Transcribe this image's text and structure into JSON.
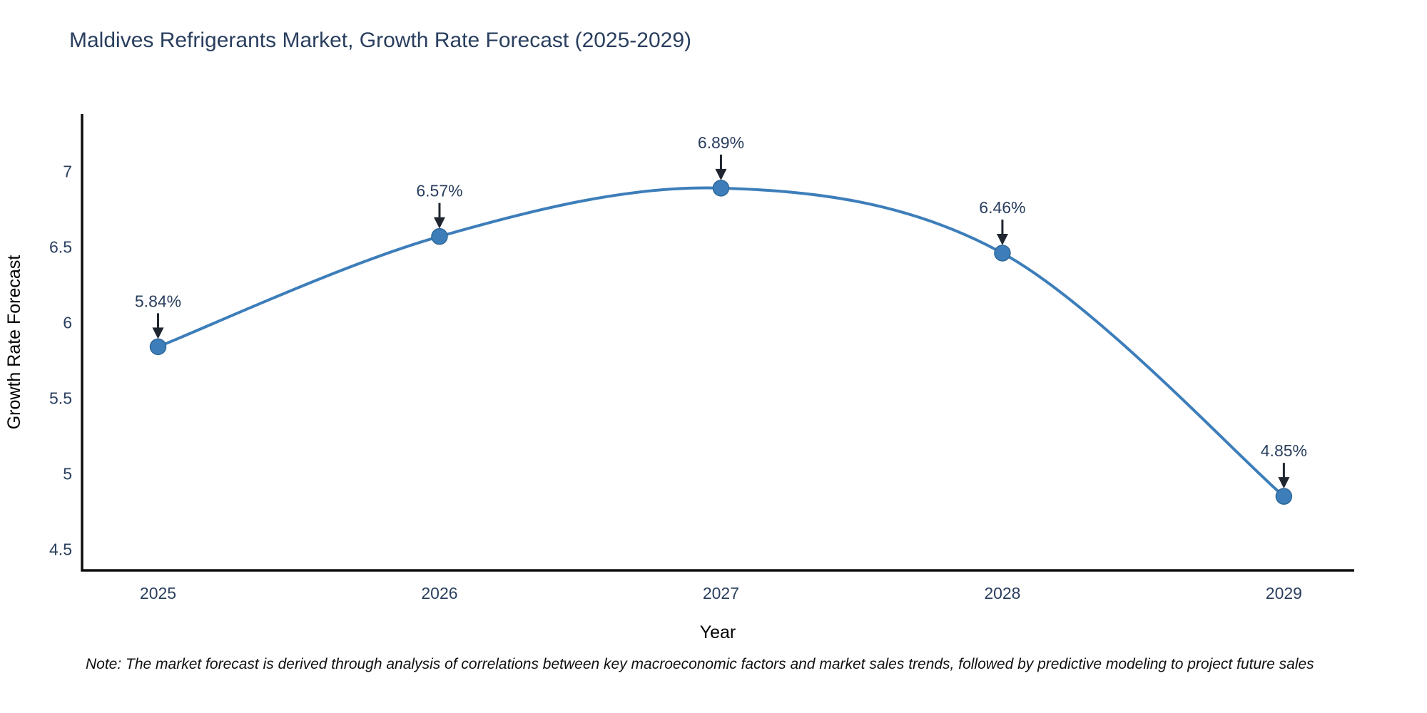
{
  "page": {
    "background": "#ffffff"
  },
  "chart_data": {
    "type": "line",
    "title": "Maldives Refrigerants Market, Growth Rate Forecast (2025-2029)",
    "xlabel": "Year",
    "ylabel": "Growth Rate Forecast",
    "x": [
      2025,
      2026,
      2027,
      2028,
      2029
    ],
    "series": [
      {
        "name": "Growth Rate Forecast",
        "values": [
          5.84,
          6.57,
          6.89,
          6.46,
          4.85
        ]
      }
    ],
    "point_labels": [
      "5.84%",
      "6.57%",
      "6.89%",
      "6.46%",
      "4.85%"
    ],
    "x_ticks": [
      2025,
      2026,
      2027,
      2028,
      2029
    ],
    "x_tick_labels": [
      "2025",
      "2026",
      "2027",
      "2028",
      "2029"
    ],
    "y_ticks": [
      4.5,
      5.0,
      5.5,
      6.0,
      6.5,
      7.0
    ],
    "y_tick_labels": [
      "4.5",
      "5",
      "5.5",
      "6",
      "6.5",
      "7"
    ],
    "xlim": [
      2024.73,
      2029.25
    ],
    "ylim": [
      4.36,
      7.38
    ],
    "grid": false,
    "legend": "none",
    "line_shape": "spline",
    "annotation_style": "down-arrow",
    "colors": {
      "line": "#3d7eba",
      "marker_fill": "#3d7eba",
      "marker_edge": "#2f6898",
      "axis": "#0e0e0e",
      "tick_text": "#2a3f5f",
      "title_text": "#2a3f5f",
      "annotation_text": "#2a3f5f",
      "arrow": "#1f2630"
    }
  },
  "note": {
    "text": "Note: The market forecast is derived through analysis of correlations between key macroeconomic factors and market sales trends, followed by predictive modeling to project future sales"
  }
}
